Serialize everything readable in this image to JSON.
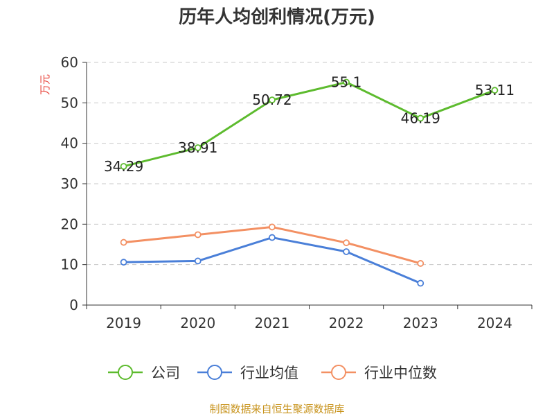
{
  "chart_data": {
    "type": "line",
    "title": "历年人均创利情况(万元)",
    "ylabel": "万元",
    "xlabel": "",
    "ylim": [
      0,
      60
    ],
    "yticks": [
      0,
      10,
      20,
      30,
      40,
      50,
      60
    ],
    "categories": [
      "2019",
      "2020",
      "2021",
      "2022",
      "2023",
      "2024"
    ],
    "grid": true,
    "legend_position": "bottom",
    "series": [
      {
        "name": "公司",
        "color": "#5dbb2e",
        "values": [
          34.29,
          38.91,
          50.72,
          55.1,
          46.19,
          53.11
        ],
        "labels": [
          "34.29",
          "38.91",
          "50.72",
          "55.1",
          "46.19",
          "53.11"
        ]
      },
      {
        "name": "行业均值",
        "color": "#4a7fd8",
        "values": [
          10.6,
          10.9,
          16.7,
          13.2,
          5.4,
          null
        ]
      },
      {
        "name": "行业中位数",
        "color": "#f39063",
        "values": [
          15.5,
          17.4,
          19.3,
          15.4,
          10.3,
          null
        ]
      }
    ],
    "source": "制图数据来自恒生聚源数据库"
  }
}
